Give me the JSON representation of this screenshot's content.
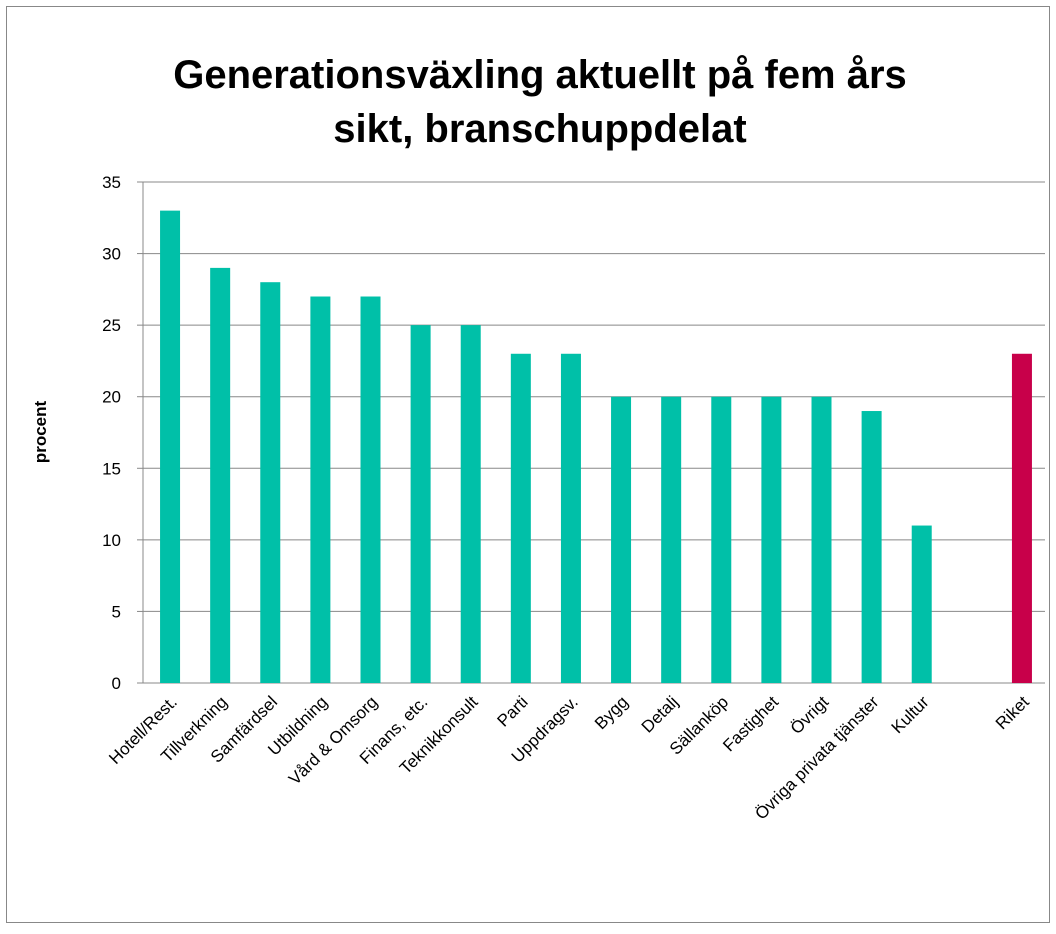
{
  "chart_data": {
    "type": "bar",
    "title": [
      "Generationsväxling aktuellt på fem års",
      "sikt, branschuppdelat"
    ],
    "y_label": "procent",
    "categories": [
      "Hotell/Rest.",
      "Tillverkning",
      "Samfärdsel",
      "Utbildning",
      "Vård & Omsorg",
      "Finans, etc.",
      "Teknikkonsult",
      "Parti",
      "Uppdragsv.",
      "Bygg",
      "Detalj",
      "Sällanköp",
      "Fastighet",
      "Övrigt",
      "Övriga privata tjänster",
      "Kultur",
      null,
      "Riket"
    ],
    "values": [
      33,
      29,
      28,
      27,
      27,
      25,
      25,
      23,
      23,
      20,
      20,
      20,
      20,
      20,
      19,
      11,
      null,
      23
    ],
    "colors": [
      "#00c0a8",
      "#00c0a8",
      "#00c0a8",
      "#00c0a8",
      "#00c0a8",
      "#00c0a8",
      "#00c0a8",
      "#00c0a8",
      "#00c0a8",
      "#00c0a8",
      "#00c0a8",
      "#00c0a8",
      "#00c0a8",
      "#00c0a8",
      "#00c0a8",
      "#00c0a8",
      null,
      "#c8004a"
    ],
    "ylim": [
      0,
      35
    ],
    "yticks": [
      0,
      5,
      10,
      15,
      20,
      25,
      30,
      35
    ],
    "grid": true
  }
}
